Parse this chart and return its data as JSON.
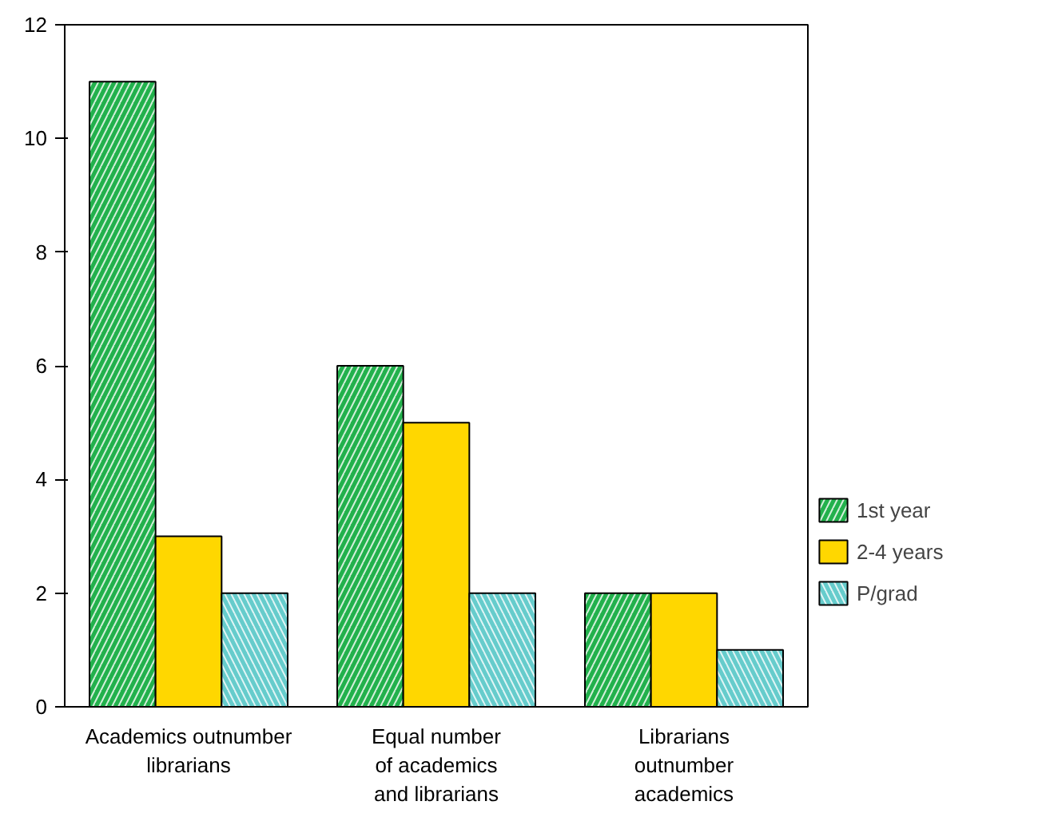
{
  "chart_data": {
    "type": "bar",
    "categories": [
      "Academics outnumber\nlibrarians",
      "Equal number\nof academics\nand librarians",
      "Librarians\noutnumber\nacademics"
    ],
    "series": [
      {
        "name": "1st year",
        "color": "#22b14c",
        "values": [
          11,
          6,
          2
        ]
      },
      {
        "name": "2-4 years",
        "color": "#ffd700",
        "values": [
          3,
          5,
          2
        ]
      },
      {
        "name": "P/grad",
        "color": "#66cccc",
        "values": [
          2,
          2,
          1
        ]
      }
    ],
    "ylim": [
      0,
      12
    ],
    "yticks": [
      0,
      2,
      4,
      6,
      8,
      10,
      12
    ],
    "grid": false,
    "legend": "right"
  }
}
